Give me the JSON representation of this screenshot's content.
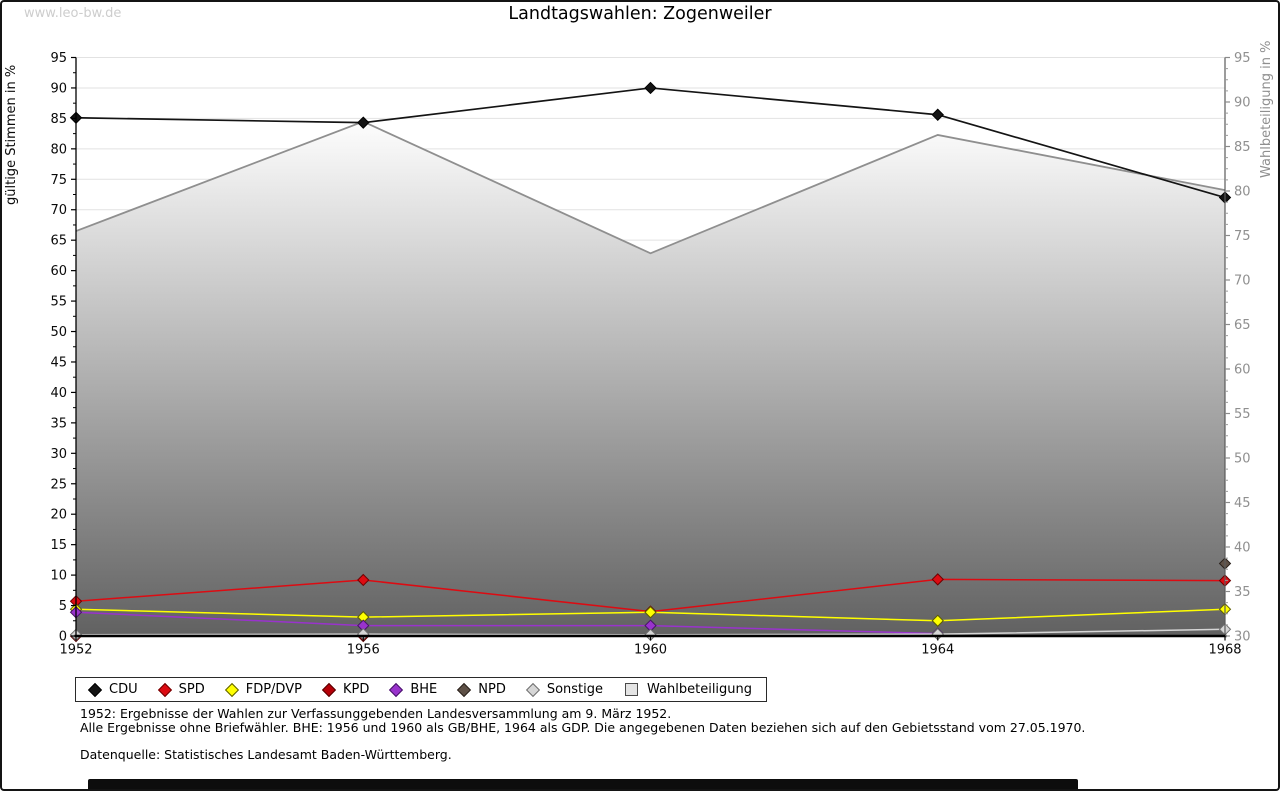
{
  "header": {
    "watermark": "www.leo-bw.de",
    "title": "Landtagswahlen: Zogenweiler"
  },
  "chart_data": {
    "type": "line",
    "title": "Landtagswahlen: Zogenweiler",
    "categories": [
      "1952",
      "1956",
      "1960",
      "1964",
      "1968"
    ],
    "left_axis": {
      "label": "gültige Stimmen in %",
      "min": 0,
      "max": 95,
      "step": 5
    },
    "right_axis": {
      "label": "Wahlbeteiligung in %",
      "min": 30,
      "max": 95,
      "step": 5
    },
    "grid": true,
    "legend_position": "bottom",
    "series": [
      {
        "name": "CDU",
        "color": "#141414",
        "border": "#000000",
        "values": [
          85.1,
          84.3,
          90.0,
          85.6,
          72.0
        ]
      },
      {
        "name": "SPD",
        "color": "#dd0b12",
        "border": "#6e0000",
        "values": [
          5.7,
          9.2,
          4.0,
          9.3,
          9.1
        ]
      },
      {
        "name": "FDP/DVP",
        "color": "#ffff00",
        "border": "#5c5c00",
        "values": [
          4.4,
          3.1,
          3.9,
          2.5,
          4.4
        ]
      },
      {
        "name": "KPD",
        "color": "#b50008",
        "border": "#550000",
        "values": [
          0.0,
          0.0,
          null,
          null,
          null
        ]
      },
      {
        "name": "BHE",
        "color": "#9933cc",
        "border": "#461566",
        "values": [
          3.9,
          1.7,
          1.7,
          0.4,
          null
        ]
      },
      {
        "name": "NPD",
        "color": "#5e5046",
        "border": "#2a221c",
        "values": [
          null,
          null,
          null,
          null,
          11.9
        ]
      },
      {
        "name": "Sonstige",
        "color": "#d6d6d6",
        "border": "#6e6e6e",
        "values": [
          0.2,
          0.3,
          0.2,
          0.3,
          1.1
        ]
      }
    ],
    "participation": {
      "name": "Wahlbeteiligung",
      "axis": "right",
      "line_color": "#8f8f8f",
      "fill_gradient": [
        "#fdfdfd",
        "#616161"
      ],
      "values": [
        75.5,
        87.8,
        73.0,
        86.3,
        80.1
      ]
    }
  },
  "footnotes": {
    "line1": "1952: Ergebnisse der Wahlen zur Verfassunggebenden Landesversammlung am 9. März 1952.",
    "line2": "Alle Ergebnisse ohne Briefwähler. BHE: 1956 und 1960 als GB/BHE, 1964 als GDP. Die angegebenen Daten beziehen sich auf den Gebietsstand vom 27.05.1970.",
    "source": "Datenquelle: Statistisches Landesamt Baden-Württemberg."
  }
}
